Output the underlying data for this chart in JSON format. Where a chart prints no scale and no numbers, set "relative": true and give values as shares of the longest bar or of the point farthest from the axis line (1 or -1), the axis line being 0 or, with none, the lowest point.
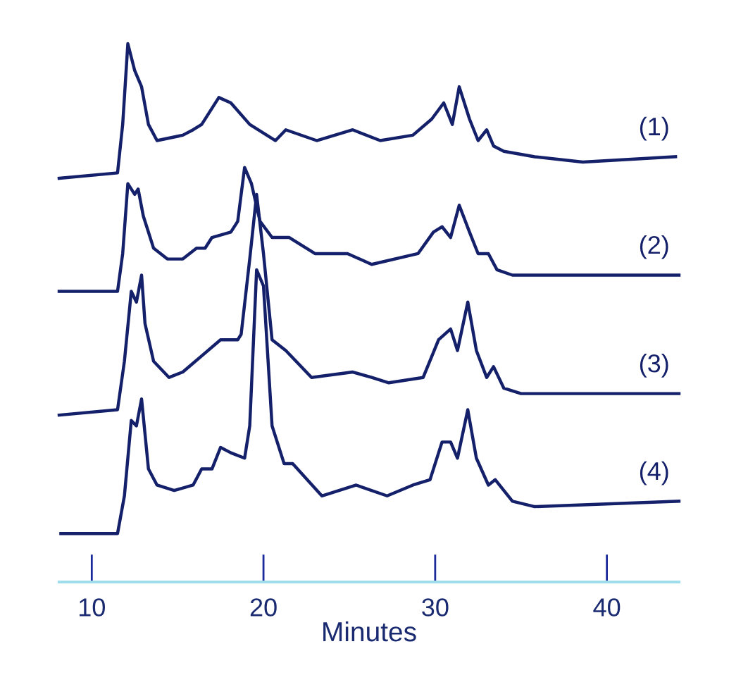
{
  "chart_data": {
    "type": "line",
    "relative": true,
    "tick_labels": "x",
    "xlim": [
      8.1,
      44.2
    ],
    "xticks": [
      10,
      20,
      30,
      40
    ],
    "xlabel": "Minutes",
    "series": [
      {
        "name": "(1)",
        "color": "#14206a",
        "x": [
          8.1,
          11.5,
          11.8,
          12.1,
          12.5,
          12.9,
          13.3,
          13.8,
          15.3,
          15.9,
          16.4,
          17.4,
          18.1,
          19.2,
          20.7,
          21.3,
          23.1,
          25.2,
          26.8,
          28.7,
          29.8,
          30.5,
          31.0,
          31.4,
          32.0,
          32.5,
          33.0,
          33.4,
          34.0,
          35.8,
          38.6,
          44.0
        ],
        "values": [
          0.75,
          0.76,
          0.85,
          1.0,
          0.95,
          0.92,
          0.85,
          0.82,
          0.83,
          0.84,
          0.85,
          0.9,
          0.89,
          0.85,
          0.82,
          0.84,
          0.82,
          0.84,
          0.82,
          0.83,
          0.86,
          0.89,
          0.85,
          0.92,
          0.86,
          0.82,
          0.84,
          0.81,
          0.8,
          0.79,
          0.78,
          0.79
        ]
      },
      {
        "name": "(2)",
        "color": "#14206a",
        "x": [
          8.1,
          11.5,
          11.8,
          12.1,
          12.5,
          12.7,
          13.0,
          13.6,
          14.4,
          15.3,
          16.1,
          16.6,
          17.0,
          18.1,
          18.5,
          18.9,
          19.3,
          19.8,
          20.5,
          21.5,
          23.0,
          24.9,
          26.3,
          29.0,
          29.9,
          30.4,
          30.9,
          31.4,
          32.0,
          32.5,
          33.1,
          33.6,
          34.5,
          44.2
        ],
        "values": [
          0.54,
          0.54,
          0.61,
          0.74,
          0.72,
          0.73,
          0.68,
          0.62,
          0.6,
          0.6,
          0.62,
          0.62,
          0.64,
          0.65,
          0.67,
          0.77,
          0.74,
          0.67,
          0.64,
          0.64,
          0.61,
          0.61,
          0.59,
          0.61,
          0.65,
          0.66,
          0.64,
          0.7,
          0.65,
          0.61,
          0.61,
          0.58,
          0.57,
          0.57
        ]
      },
      {
        "name": "(3)",
        "color": "#14206a",
        "x": [
          8.1,
          11.5,
          11.9,
          12.3,
          12.6,
          12.9,
          13.1,
          13.6,
          14.5,
          15.3,
          16.4,
          17.5,
          18.5,
          18.7,
          19.2,
          19.6,
          20.0,
          20.5,
          21.3,
          22.8,
          25.2,
          26.3,
          27.3,
          29.3,
          30.2,
          30.9,
          31.3,
          31.9,
          32.4,
          33.0,
          33.4,
          34.0,
          35.0,
          44.2
        ],
        "values": [
          0.31,
          0.32,
          0.41,
          0.54,
          0.52,
          0.57,
          0.48,
          0.41,
          0.38,
          0.39,
          0.42,
          0.45,
          0.45,
          0.46,
          0.6,
          0.72,
          0.61,
          0.45,
          0.43,
          0.38,
          0.39,
          0.38,
          0.37,
          0.38,
          0.45,
          0.47,
          0.43,
          0.52,
          0.43,
          0.38,
          0.4,
          0.36,
          0.35,
          0.35
        ]
      },
      {
        "name": "(4)",
        "color": "#14206a",
        "x": [
          8.2,
          11.5,
          11.9,
          12.3,
          12.6,
          12.9,
          13.3,
          13.8,
          14.8,
          15.9,
          16.4,
          17.0,
          17.5,
          18.1,
          18.9,
          19.2,
          19.6,
          20.0,
          20.5,
          21.2,
          21.7,
          23.4,
          25.4,
          27.2,
          28.7,
          29.7,
          30.4,
          30.9,
          31.3,
          31.9,
          32.4,
          33.1,
          33.5,
          34.5,
          35.8,
          44.2
        ],
        "values": [
          0.09,
          0.09,
          0.16,
          0.3,
          0.29,
          0.34,
          0.21,
          0.18,
          0.17,
          0.18,
          0.21,
          0.21,
          0.25,
          0.24,
          0.23,
          0.29,
          0.58,
          0.55,
          0.29,
          0.22,
          0.22,
          0.16,
          0.18,
          0.16,
          0.18,
          0.19,
          0.26,
          0.26,
          0.23,
          0.32,
          0.23,
          0.18,
          0.19,
          0.15,
          0.14,
          0.15
        ]
      }
    ]
  }
}
